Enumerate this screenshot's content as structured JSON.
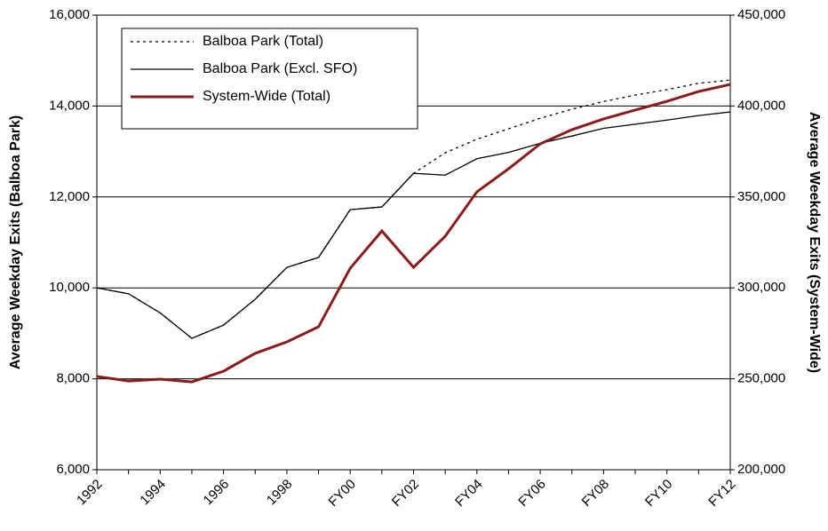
{
  "chart_data": {
    "type": "line",
    "categories": [
      "1992",
      null,
      "1994",
      null,
      "1996",
      null,
      "1998",
      null,
      "FY00",
      null,
      "FY02",
      null,
      "FY04",
      null,
      "FY06",
      null,
      "FY08",
      null,
      "FY10",
      null,
      "FY12"
    ],
    "series": [
      {
        "name": "Balboa Park (Total)",
        "color": "#000000",
        "dash": "dotted",
        "values": [
          10000,
          9870,
          9450,
          8890,
          9180,
          9750,
          10450,
          10670,
          11720,
          11780,
          12520,
          12970,
          13270,
          13500,
          13730,
          13930,
          14100,
          14240,
          14360,
          14500,
          14570
        ]
      },
      {
        "name": "Balboa Park (Excl. SFO)",
        "color": "#000000",
        "dash": "solid",
        "values": [
          10000,
          9870,
          9450,
          8890,
          9180,
          9750,
          10450,
          10670,
          11720,
          11780,
          12520,
          12480,
          12840,
          12980,
          13180,
          13340,
          13510,
          13600,
          13690,
          13790,
          13870
        ]
      },
      {
        "name": "System-Wide (Total)",
        "color": "#8b1a1a",
        "dash": "solid",
        "axis": "y2",
        "values": [
          251300,
          248800,
          249800,
          248300,
          254200,
          264000,
          270300,
          278600,
          310800,
          331300,
          311300,
          328400,
          352800,
          365500,
          379200,
          387000,
          392900,
          397800,
          402600,
          408000,
          411900
        ]
      }
    ],
    "ylabel": "Average Weekday Exits (Balboa Park)",
    "y2label": "Average Weekday Exits (System-Wide)",
    "ylim": [
      6000,
      16000
    ],
    "yticks": [
      {
        "value": 6000,
        "label": "6,000"
      },
      {
        "value": 8000,
        "label": "8,000"
      },
      {
        "value": 10000,
        "label": "10,000"
      },
      {
        "value": 12000,
        "label": "12,000"
      },
      {
        "value": 14000,
        "label": "14,000"
      },
      {
        "value": 16000,
        "label": "16,000"
      }
    ],
    "y2lim": [
      200000,
      450000
    ],
    "y2ticks": [
      {
        "value": 200000,
        "label": "200,000"
      },
      {
        "value": 250000,
        "label": "250,000"
      },
      {
        "value": 300000,
        "label": "300,000"
      },
      {
        "value": 350000,
        "label": "350,000"
      },
      {
        "value": 400000,
        "label": "400,000"
      },
      {
        "value": 450000,
        "label": "450,000"
      }
    ],
    "grid": true,
    "legend": "upper left"
  }
}
